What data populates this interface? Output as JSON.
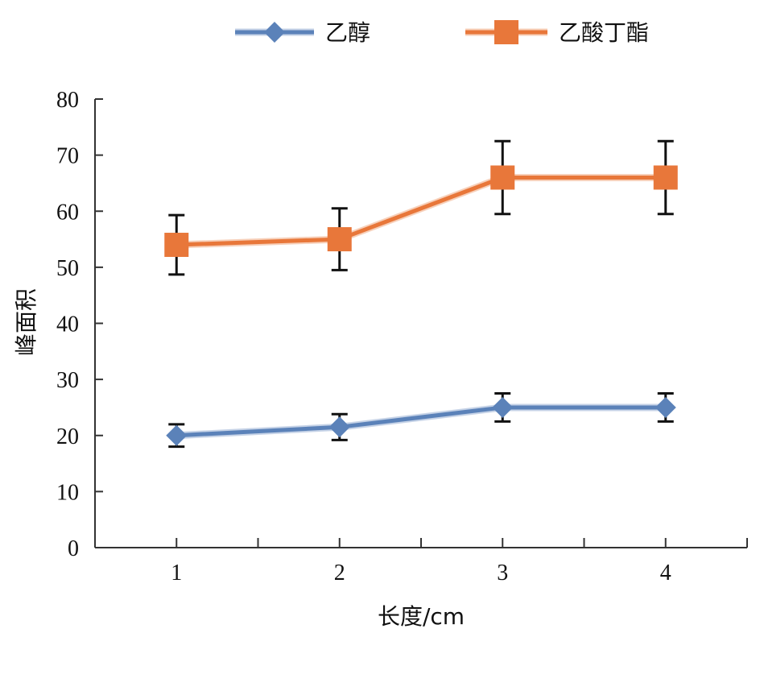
{
  "chart_data": {
    "type": "line",
    "x": [
      1,
      2,
      3,
      4
    ],
    "x_ticks": [
      "1",
      "2",
      "3",
      "4"
    ],
    "y_ticks": [
      "0",
      "10",
      "20",
      "30",
      "40",
      "50",
      "60",
      "70",
      "80"
    ],
    "xlim": [
      0.5,
      4.5
    ],
    "ylim": [
      0,
      80
    ],
    "xlabel": "长度/cm",
    "ylabel": "峰面积",
    "grid": false,
    "legend_position": "top",
    "series": [
      {
        "name": "乙醇",
        "marker": "diamond",
        "color": "#5b82b9",
        "values": [
          20,
          21.5,
          25,
          25
        ],
        "error": [
          2,
          2.3,
          2.5,
          2.5
        ]
      },
      {
        "name": "乙酸丁酯",
        "marker": "square",
        "color": "#e8773a",
        "values": [
          54,
          55,
          66,
          66
        ],
        "error": [
          5.3,
          5.5,
          6.5,
          6.5
        ]
      }
    ]
  }
}
